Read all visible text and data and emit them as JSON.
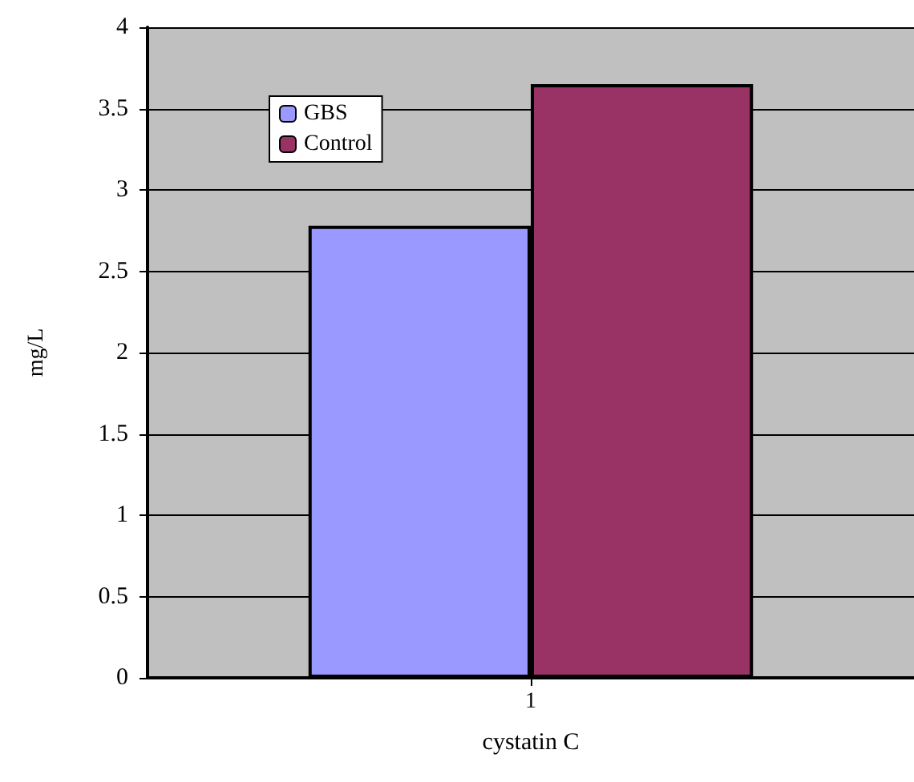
{
  "chart_data": {
    "type": "bar",
    "xlabel": "cystatin C",
    "ylabel": "mg/L",
    "categories": [
      "1"
    ],
    "series": [
      {
        "name": "GBS",
        "color": "#9999ff",
        "values": [
          2.78
        ]
      },
      {
        "name": "Control",
        "color": "#993366",
        "values": [
          3.65
        ]
      }
    ],
    "ylim": [
      0,
      4
    ],
    "yticks": [
      0,
      0.5,
      1,
      1.5,
      2,
      2.5,
      3,
      3.5,
      4
    ],
    "grid": "y",
    "legend": "top left"
  }
}
